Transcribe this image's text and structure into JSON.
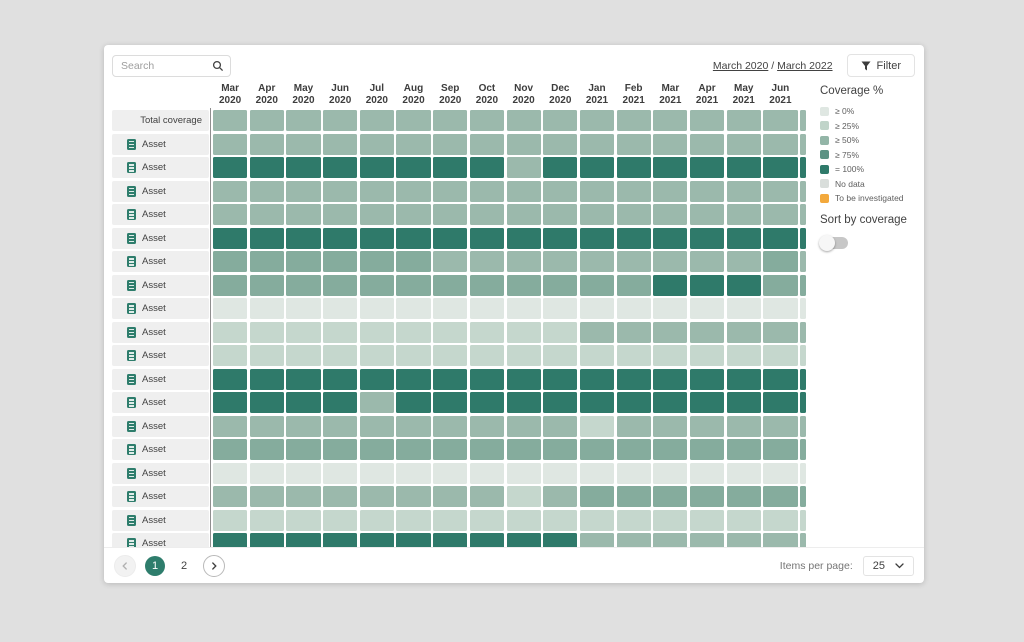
{
  "topbar": {
    "search_placeholder": "Search",
    "date_range": {
      "start": "March 2020",
      "separator": "/",
      "end": "March 2022"
    },
    "filter_label": "Filter"
  },
  "legend": {
    "title": "Coverage %",
    "items": [
      {
        "label": "≥ 0%",
        "color": "#dfe7e2"
      },
      {
        "label": "≥ 25%",
        "color": "#c0d4c9"
      },
      {
        "label": "≥ 50%",
        "color": "#93b5a7"
      },
      {
        "label": "≥ 75%",
        "color": "#5d9384"
      },
      {
        "label": "= 100%",
        "color": "#2f7a6a"
      },
      {
        "label": "No data",
        "color": "#d9dedb"
      },
      {
        "label": "To be investigated",
        "color": "#f3a93c"
      }
    ],
    "sort_label": "Sort by coverage",
    "sort_toggle_on": false
  },
  "pagination": {
    "pages": [
      "1",
      "2"
    ],
    "active_page": "1"
  },
  "items_per_page": {
    "label": "Items per page:",
    "value": "25"
  },
  "accent_color": "#2e7d6c",
  "chart_data": {
    "type": "heatmap",
    "title": "Asset coverage % by month",
    "columns": [
      "Mar 2020",
      "Apr 2020",
      "May 2020",
      "Jun 2020",
      "Jul 2020",
      "Aug 2020",
      "Sep 2020",
      "Oct 2020",
      "Nov 2020",
      "Dec 2020",
      "Jan 2021",
      "Feb 2021",
      "Mar 2021",
      "Apr 2021",
      "May 2021",
      "Jun 2021"
    ],
    "palette": {
      "0": "#dfe7e2",
      "25": "#c5d7cd",
      "50": "#9bb9ac",
      "65": "#85ac9d",
      "100": "#2f7a6a"
    },
    "rows": [
      {
        "label": "Total coverage",
        "type": "total",
        "overflow": "50",
        "levels": [
          "50",
          "50",
          "50",
          "50",
          "50",
          "50",
          "50",
          "50",
          "50",
          "50",
          "50",
          "50",
          "50",
          "50",
          "50",
          "50"
        ]
      },
      {
        "label": "Asset",
        "type": "asset",
        "overflow": "50",
        "levels": [
          "50",
          "50",
          "50",
          "50",
          "50",
          "50",
          "50",
          "50",
          "50",
          "50",
          "50",
          "50",
          "50",
          "50",
          "50",
          "50"
        ]
      },
      {
        "label": "Asset",
        "type": "asset",
        "overflow": "100",
        "levels": [
          "100",
          "100",
          "100",
          "100",
          "100",
          "100",
          "100",
          "100",
          "50",
          "100",
          "100",
          "100",
          "100",
          "100",
          "100",
          "100"
        ]
      },
      {
        "label": "Asset",
        "type": "asset",
        "overflow": "50",
        "levels": [
          "50",
          "50",
          "50",
          "50",
          "50",
          "50",
          "50",
          "50",
          "50",
          "50",
          "50",
          "50",
          "50",
          "50",
          "50",
          "50"
        ]
      },
      {
        "label": "Asset",
        "type": "asset",
        "overflow": "50",
        "levels": [
          "50",
          "50",
          "50",
          "50",
          "50",
          "50",
          "50",
          "50",
          "50",
          "50",
          "50",
          "50",
          "50",
          "50",
          "50",
          "50"
        ]
      },
      {
        "label": "Asset",
        "type": "asset",
        "overflow": "100",
        "levels": [
          "100",
          "100",
          "100",
          "100",
          "100",
          "100",
          "100",
          "100",
          "100",
          "100",
          "100",
          "100",
          "100",
          "100",
          "100",
          "100"
        ]
      },
      {
        "label": "Asset",
        "type": "asset",
        "overflow": "50",
        "levels": [
          "65",
          "65",
          "65",
          "65",
          "65",
          "65",
          "50",
          "50",
          "50",
          "50",
          "50",
          "50",
          "50",
          "50",
          "50",
          "65"
        ]
      },
      {
        "label": "Asset",
        "type": "asset",
        "overflow": "65",
        "levels": [
          "65",
          "65",
          "65",
          "65",
          "65",
          "65",
          "65",
          "65",
          "65",
          "65",
          "65",
          "65",
          "100",
          "100",
          "100",
          "65"
        ]
      },
      {
        "label": "Asset",
        "type": "asset",
        "overflow": "0",
        "levels": [
          "0",
          "0",
          "0",
          "0",
          "0",
          "0",
          "0",
          "0",
          "0",
          "0",
          "0",
          "0",
          "0",
          "0",
          "0",
          "0"
        ]
      },
      {
        "label": "Asset",
        "type": "asset",
        "overflow": "50",
        "levels": [
          "25",
          "25",
          "25",
          "25",
          "25",
          "25",
          "25",
          "25",
          "25",
          "25",
          "50",
          "50",
          "50",
          "50",
          "50",
          "50"
        ]
      },
      {
        "label": "Asset",
        "type": "asset",
        "overflow": "25",
        "levels": [
          "25",
          "25",
          "25",
          "25",
          "25",
          "25",
          "25",
          "25",
          "25",
          "25",
          "25",
          "25",
          "25",
          "25",
          "25",
          "25"
        ]
      },
      {
        "label": "Asset",
        "type": "asset",
        "overflow": "100",
        "levels": [
          "100",
          "100",
          "100",
          "100",
          "100",
          "100",
          "100",
          "100",
          "100",
          "100",
          "100",
          "100",
          "100",
          "100",
          "100",
          "100"
        ]
      },
      {
        "label": "Asset",
        "type": "asset",
        "overflow": "100",
        "levels": [
          "100",
          "100",
          "100",
          "100",
          "50",
          "100",
          "100",
          "100",
          "100",
          "100",
          "100",
          "100",
          "100",
          "100",
          "100",
          "100"
        ]
      },
      {
        "label": "Asset",
        "type": "asset",
        "overflow": "50",
        "levels": [
          "50",
          "50",
          "50",
          "50",
          "50",
          "50",
          "50",
          "50",
          "50",
          "50",
          "25",
          "50",
          "50",
          "50",
          "50",
          "50"
        ]
      },
      {
        "label": "Asset",
        "type": "asset",
        "overflow": "65",
        "levels": [
          "65",
          "65",
          "65",
          "65",
          "65",
          "65",
          "65",
          "65",
          "65",
          "65",
          "65",
          "65",
          "65",
          "65",
          "65",
          "65"
        ]
      },
      {
        "label": "Asset",
        "type": "asset",
        "overflow": "0",
        "levels": [
          "0",
          "0",
          "0",
          "0",
          "0",
          "0",
          "0",
          "0",
          "0",
          "0",
          "0",
          "0",
          "0",
          "0",
          "0",
          "0"
        ]
      },
      {
        "label": "Asset",
        "type": "asset",
        "overflow": "65",
        "levels": [
          "50",
          "50",
          "50",
          "50",
          "50",
          "50",
          "50",
          "50",
          "25",
          "50",
          "65",
          "65",
          "65",
          "65",
          "65",
          "65"
        ]
      },
      {
        "label": "Asset",
        "type": "asset",
        "overflow": "25",
        "levels": [
          "25",
          "25",
          "25",
          "25",
          "25",
          "25",
          "25",
          "25",
          "25",
          "25",
          "25",
          "25",
          "25",
          "25",
          "25",
          "25"
        ]
      },
      {
        "label": "Asset",
        "type": "asset",
        "overflow": "50",
        "levels": [
          "100",
          "100",
          "100",
          "100",
          "100",
          "100",
          "100",
          "100",
          "100",
          "100",
          "50",
          "50",
          "50",
          "50",
          "50",
          "50"
        ]
      }
    ]
  }
}
